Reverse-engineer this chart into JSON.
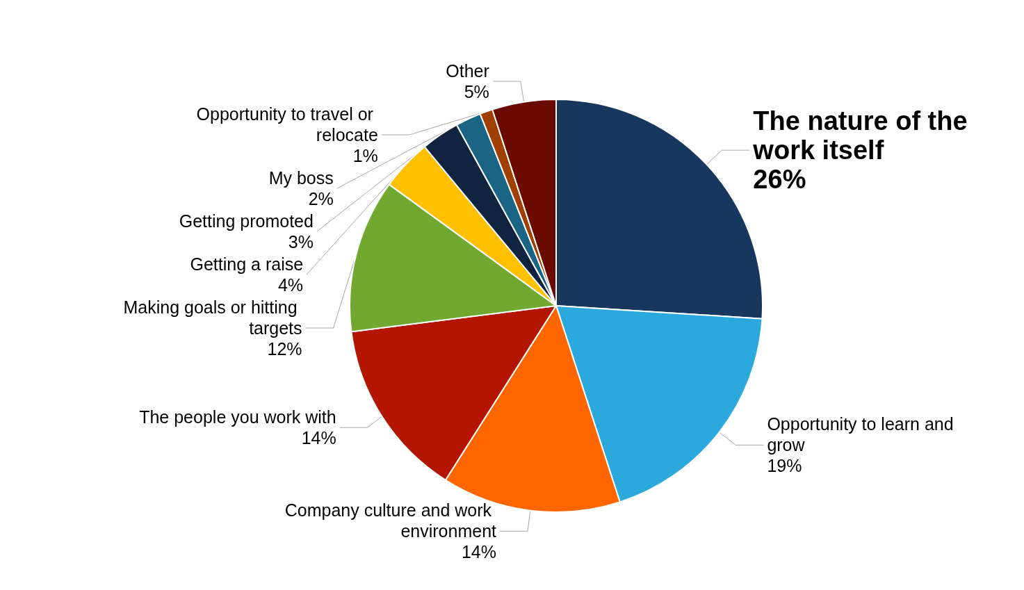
{
  "chart_data": {
    "type": "pie",
    "categories": [
      "The nature of the work itself",
      "Opportunity to learn and grow",
      "Company culture and work environment",
      "The people you work with",
      "Making goals or hitting targets",
      "Getting a raise",
      "Getting promoted",
      "My boss",
      "Opportunity to travel or relocate",
      "Other"
    ],
    "values": [
      26,
      19,
      14,
      14,
      12,
      4,
      3,
      2,
      1,
      5
    ],
    "value_labels": [
      "26%",
      "19%",
      "14%",
      "14%",
      "12%",
      "4%",
      "3%",
      "2%",
      "1%",
      "5%"
    ],
    "colors": [
      "#17375e",
      "#2ca9dc",
      "#ff6600",
      "#b31500",
      "#70a830",
      "#ffc000",
      "#10233f",
      "#1a6584",
      "#a04000",
      "#6b0a00"
    ],
    "legend": false
  }
}
